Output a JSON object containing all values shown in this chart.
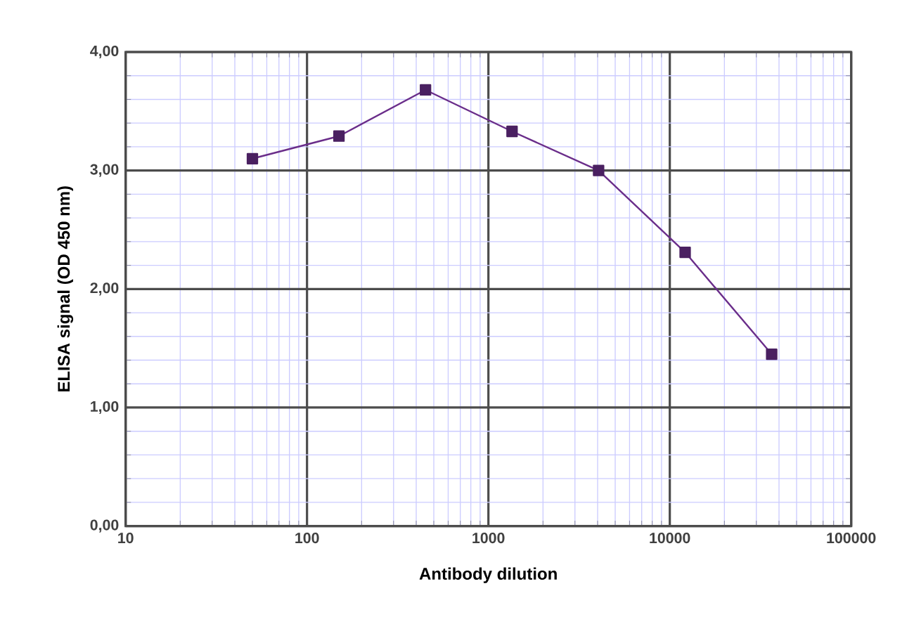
{
  "chart_data": {
    "type": "line",
    "xlabel": "Antibody dilution",
    "ylabel": "ELISA signal (OD 450 nm)",
    "x": [
      50,
      150,
      450,
      1350,
      4050,
      12150,
      36450
    ],
    "series": [
      {
        "color": "#6a2d8a",
        "values": [
          3.1,
          3.29,
          3.68,
          3.33,
          3.0,
          2.31,
          1.45
        ]
      }
    ],
    "log": "x",
    "xlim": [
      10,
      100000
    ],
    "xticks": [
      10,
      100,
      1000,
      10000,
      100000
    ],
    "ylim": [
      0,
      4
    ],
    "yticks": [
      {
        "value": 0,
        "label": "0,00"
      },
      {
        "value": 1,
        "label": "1,00"
      },
      {
        "value": 2,
        "label": "2,00"
      },
      {
        "value": 3,
        "label": "3,00"
      },
      {
        "value": 4,
        "label": "4,00"
      }
    ],
    "grid": true,
    "marker": "square",
    "line_style": "solid"
  }
}
